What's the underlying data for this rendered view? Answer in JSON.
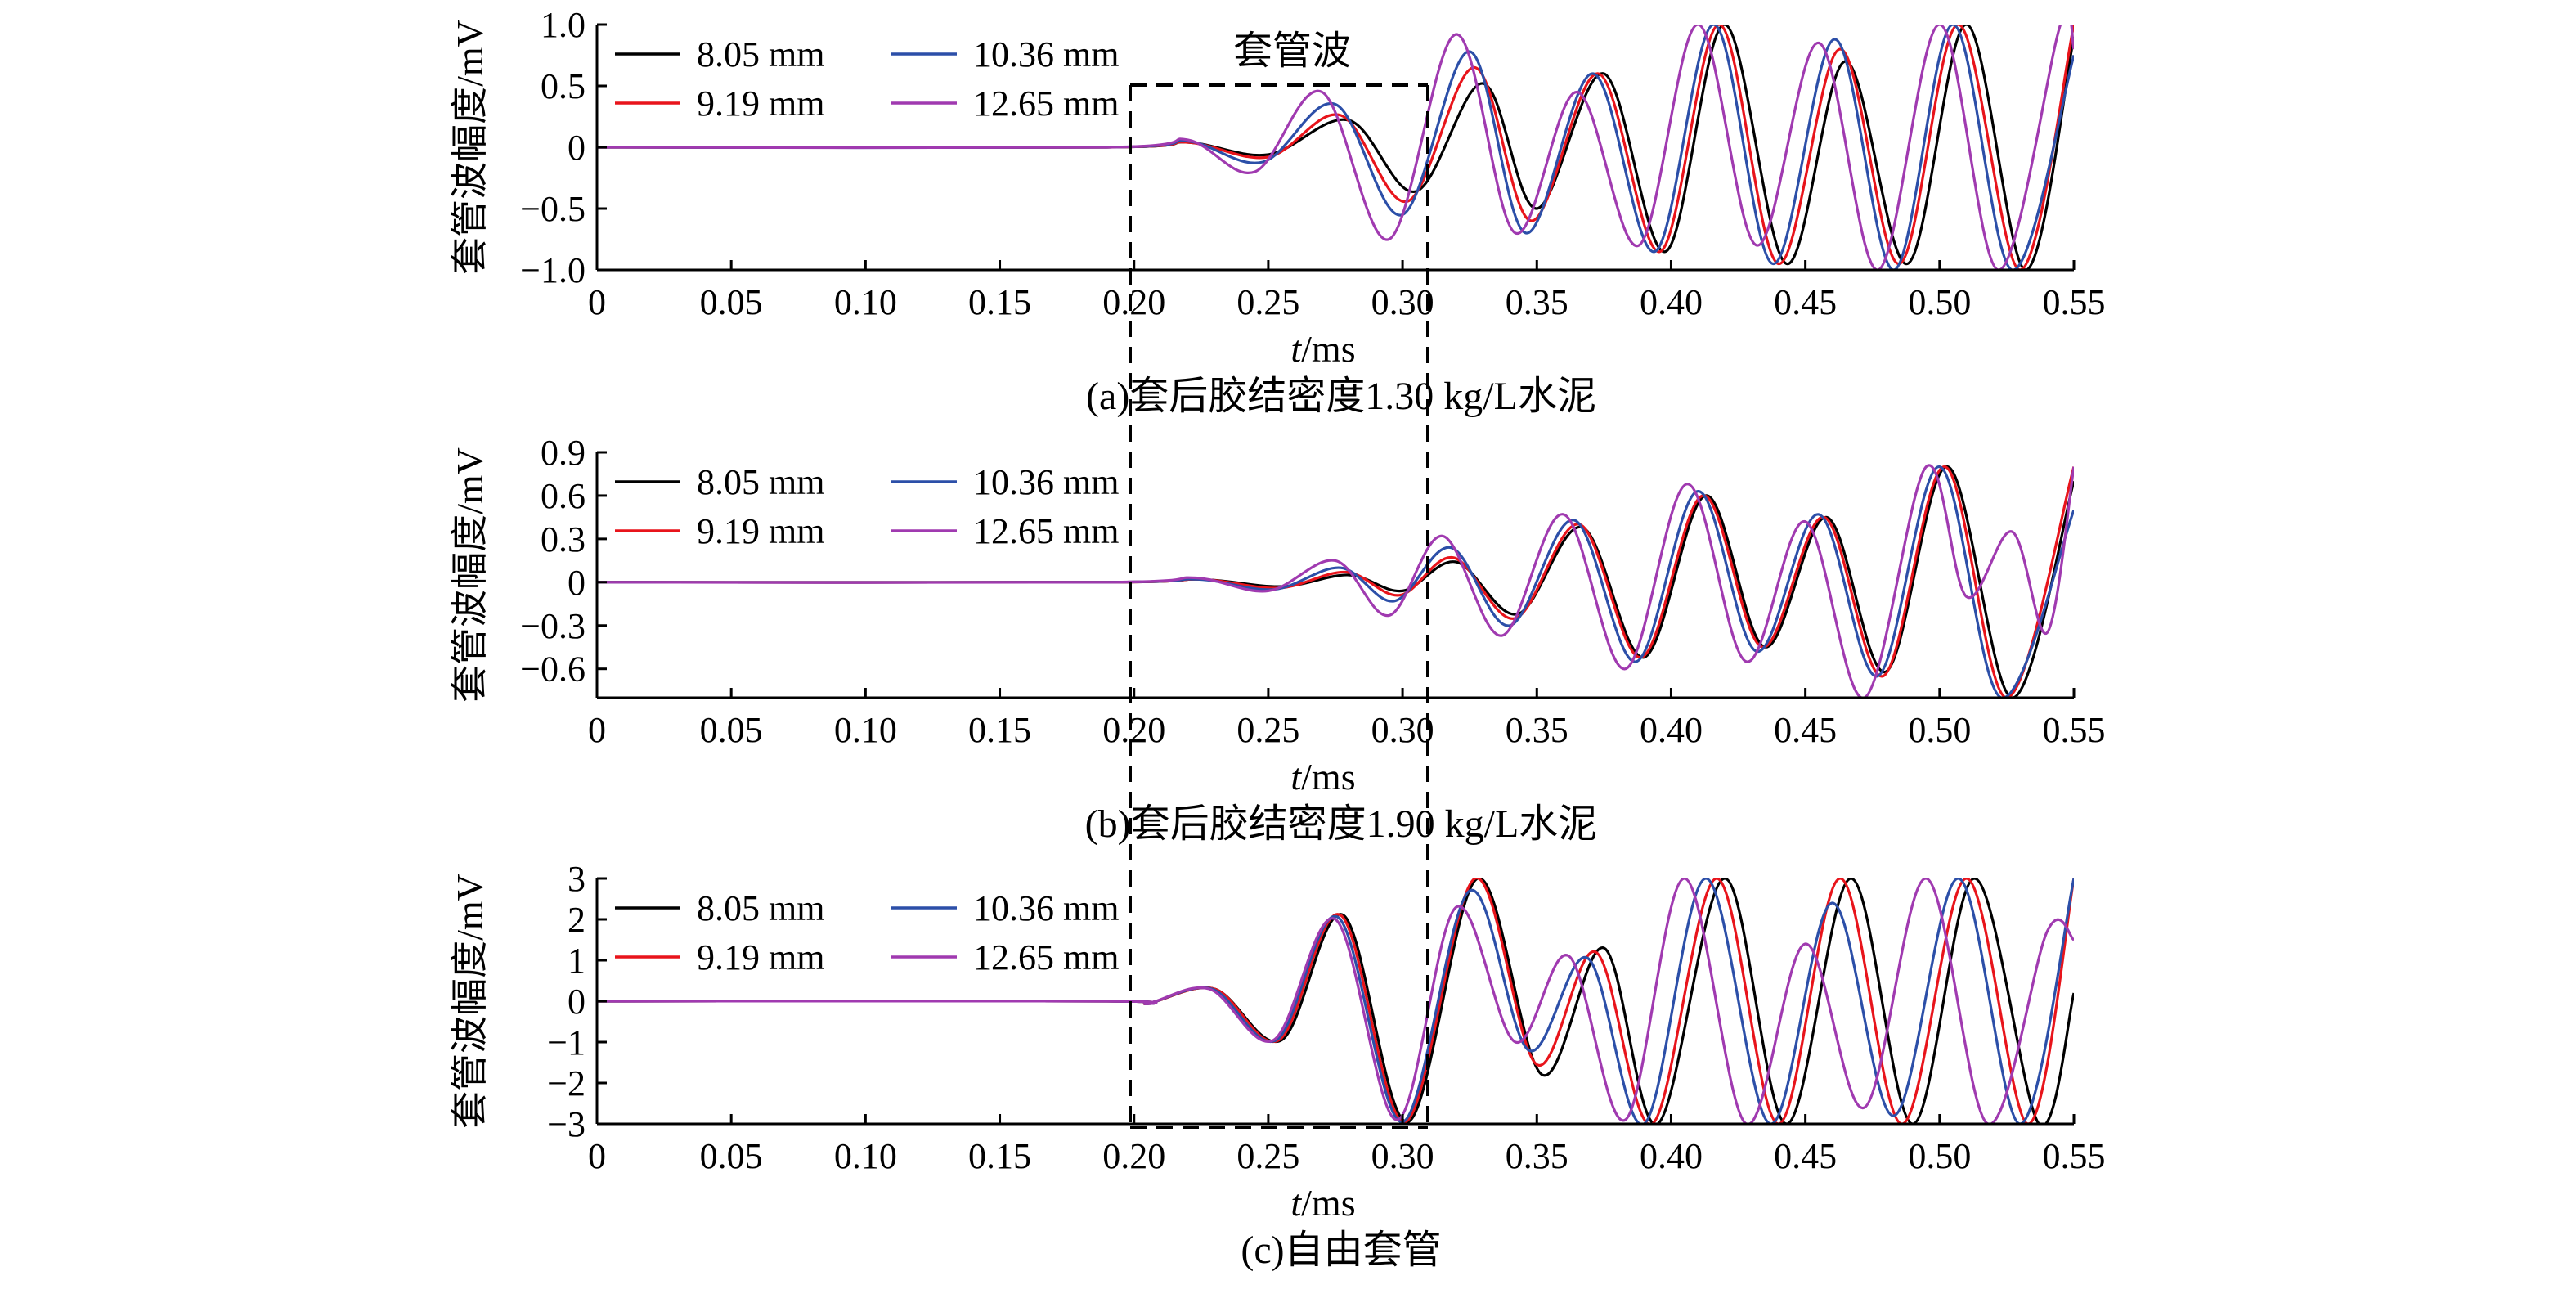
{
  "figure": {
    "annotation": "套管波",
    "legend_entries": [
      "8.05 mm",
      "9.19 mm",
      "10.36 mm",
      "12.65 mm"
    ],
    "colors": {
      "8.05 mm": "#000000",
      "9.19 mm": "#e8141b",
      "10.36 mm": "#2c4fa8",
      "12.65 mm": "#a03ab0"
    }
  },
  "chart_data": [
    {
      "type": "line",
      "caption": "(a)套后胶结密度1.30 kg/L水泥",
      "xlabel_italic": "t",
      "xlabel_rest": "/ms",
      "ylabel": "套管波幅度/mV",
      "xlim": [
        0,
        0.55
      ],
      "ylim": [
        -1.0,
        1.0
      ],
      "xticks": [
        "0",
        "0.05",
        "0.10",
        "0.15",
        "0.20",
        "0.25",
        "0.30",
        "0.35",
        "0.40",
        "0.45",
        "0.50",
        "0.55"
      ],
      "yticks": [
        "1.0",
        "0.5",
        "0",
        "−0.5",
        "−1.0"
      ],
      "ytick_values": [
        1.0,
        0.5,
        0,
        -0.5,
        -1.0
      ],
      "series": [
        {
          "name": "8.05 mm",
          "x": [
            0,
            0.19,
            0.22,
            0.25,
            0.28,
            0.305,
            0.33,
            0.35,
            0.375,
            0.398,
            0.42,
            0.443,
            0.465,
            0.488,
            0.51,
            0.532,
            0.55
          ],
          "y": [
            0,
            0,
            0.04,
            -0.06,
            0.22,
            -0.36,
            0.52,
            -0.5,
            0.6,
            -0.85,
            1.0,
            -0.95,
            0.7,
            -0.95,
            1.0,
            -1.0,
            0.9
          ]
        },
        {
          "name": "9.19 mm",
          "x": [
            0,
            0.19,
            0.22,
            0.25,
            0.277,
            0.302,
            0.327,
            0.348,
            0.373,
            0.396,
            0.418,
            0.44,
            0.463,
            0.485,
            0.507,
            0.53,
            0.55
          ],
          "y": [
            0,
            0,
            0.04,
            -0.08,
            0.26,
            -0.44,
            0.65,
            -0.6,
            0.6,
            -0.85,
            1.0,
            -0.95,
            0.8,
            -0.95,
            1.0,
            -1.0,
            1.0
          ]
        },
        {
          "name": "10.36 mm",
          "x": [
            0,
            0.19,
            0.22,
            0.248,
            0.275,
            0.3,
            0.325,
            0.346,
            0.371,
            0.394,
            0.416,
            0.438,
            0.461,
            0.483,
            0.505,
            0.527,
            0.55
          ],
          "y": [
            0,
            0,
            0.05,
            -0.12,
            0.35,
            -0.55,
            0.78,
            -0.7,
            0.6,
            -0.85,
            1.0,
            -0.95,
            0.88,
            -1.0,
            1.0,
            -1.0,
            0.75
          ]
        },
        {
          "name": "12.65 mm",
          "x": [
            0,
            0.19,
            0.22,
            0.245,
            0.27,
            0.295,
            0.32,
            0.342,
            0.365,
            0.388,
            0.41,
            0.432,
            0.455,
            0.477,
            0.5,
            0.522,
            0.545,
            0.55
          ],
          "y": [
            0,
            0,
            0.06,
            -0.2,
            0.45,
            -0.75,
            0.92,
            -0.7,
            0.45,
            -0.8,
            1.0,
            -0.8,
            0.85,
            -1.0,
            1.0,
            -1.0,
            1.0,
            0.8
          ]
        }
      ]
    },
    {
      "type": "line",
      "caption": "(b)套后胶结密度1.90 kg/L水泥",
      "xlabel_italic": "t",
      "xlabel_rest": "/ms",
      "ylabel": "套管波幅度/mV",
      "xlim": [
        0,
        0.55
      ],
      "ylim": [
        -0.8,
        0.9
      ],
      "xticks": [
        "0",
        "0.05",
        "0.10",
        "0.15",
        "0.20",
        "0.25",
        "0.30",
        "0.35",
        "0.40",
        "0.45",
        "0.50",
        "0.55"
      ],
      "yticks": [
        "0.9",
        "0.6",
        "0.3",
        "0",
        "−0.3",
        "−0.6"
      ],
      "ytick_values": [
        0.9,
        0.6,
        0.3,
        0,
        -0.3,
        -0.6
      ],
      "series": [
        {
          "name": "8.05 mm",
          "x": [
            0,
            0.19,
            0.225,
            0.255,
            0.28,
            0.3,
            0.32,
            0.343,
            0.367,
            0.39,
            0.413,
            0.435,
            0.458,
            0.48,
            0.503,
            0.527,
            0.55
          ],
          "y": [
            0,
            0,
            0.02,
            -0.03,
            0.05,
            -0.06,
            0.14,
            -0.22,
            0.38,
            -0.52,
            0.6,
            -0.45,
            0.45,
            -0.62,
            0.8,
            -0.8,
            0.7
          ]
        },
        {
          "name": "9.19 mm",
          "x": [
            0,
            0.19,
            0.225,
            0.254,
            0.279,
            0.299,
            0.319,
            0.342,
            0.366,
            0.389,
            0.412,
            0.434,
            0.457,
            0.479,
            0.502,
            0.525,
            0.55
          ],
          "y": [
            0,
            0,
            0.02,
            -0.04,
            0.07,
            -0.09,
            0.17,
            -0.25,
            0.4,
            -0.52,
            0.6,
            -0.45,
            0.45,
            -0.65,
            0.8,
            -0.8,
            0.8
          ]
        },
        {
          "name": "10.36 mm",
          "x": [
            0,
            0.19,
            0.224,
            0.252,
            0.277,
            0.297,
            0.318,
            0.34,
            0.364,
            0.387,
            0.41,
            0.432,
            0.455,
            0.477,
            0.5,
            0.523,
            0.55
          ],
          "y": [
            0,
            0,
            0.02,
            -0.05,
            0.1,
            -0.13,
            0.24,
            -0.3,
            0.43,
            -0.55,
            0.63,
            -0.48,
            0.47,
            -0.65,
            0.8,
            -0.8,
            0.5
          ]
        },
        {
          "name": "12.65 mm",
          "x": [
            0,
            0.19,
            0.223,
            0.25,
            0.275,
            0.295,
            0.315,
            0.337,
            0.36,
            0.383,
            0.406,
            0.428,
            0.45,
            0.472,
            0.495,
            0.51,
            0.527,
            0.54,
            0.55
          ],
          "y": [
            0,
            0,
            0.03,
            -0.06,
            0.15,
            -0.23,
            0.32,
            -0.37,
            0.47,
            -0.6,
            0.68,
            -0.55,
            0.42,
            -0.8,
            0.8,
            -0.1,
            0.35,
            -0.35,
            0.8
          ]
        }
      ]
    },
    {
      "type": "line",
      "caption": "(c)自由套管",
      "xlabel_italic": "t",
      "xlabel_rest": "/ms",
      "ylabel": "套管波幅度/mV",
      "xlim": [
        0,
        0.55
      ],
      "ylim": [
        -3,
        3
      ],
      "xticks": [
        "0",
        "0.05",
        "0.10",
        "0.15",
        "0.20",
        "0.25",
        "0.30",
        "0.35",
        "0.40",
        "0.45",
        "0.50",
        "0.55"
      ],
      "yticks": [
        "3",
        "2",
        "1",
        "0",
        "−1",
        "−2",
        "−3"
      ],
      "ytick_values": [
        3,
        2,
        1,
        0,
        -1,
        -2,
        -3
      ],
      "series": [
        {
          "name": "8.05 mm",
          "x": [
            0,
            0.19,
            0.205,
            0.23,
            0.255,
            0.278,
            0.302,
            0.328,
            0.352,
            0.375,
            0.395,
            0.42,
            0.443,
            0.467,
            0.49,
            0.513,
            0.537,
            0.55
          ],
          "y": [
            0,
            0,
            -0.05,
            0.3,
            -0.95,
            2.1,
            -2.95,
            3.0,
            -1.8,
            1.3,
            -3.0,
            3.0,
            -3.0,
            3.0,
            -3.0,
            3.0,
            -3.0,
            0.2
          ]
        },
        {
          "name": "9.19 mm",
          "x": [
            0,
            0.19,
            0.205,
            0.23,
            0.254,
            0.277,
            0.301,
            0.327,
            0.35,
            0.372,
            0.393,
            0.417,
            0.44,
            0.463,
            0.486,
            0.51,
            0.533,
            0.55
          ],
          "y": [
            0,
            0,
            -0.05,
            0.3,
            -0.95,
            2.1,
            -2.95,
            3.0,
            -1.55,
            1.2,
            -3.0,
            3.0,
            -3.0,
            3.0,
            -3.0,
            3.0,
            -3.0,
            3.0
          ]
        },
        {
          "name": "10.36 mm",
          "x": [
            0,
            0.19,
            0.205,
            0.229,
            0.253,
            0.276,
            0.3,
            0.325,
            0.347,
            0.369,
            0.39,
            0.413,
            0.437,
            0.46,
            0.483,
            0.507,
            0.53,
            0.55
          ],
          "y": [
            0,
            0,
            -0.05,
            0.3,
            -0.95,
            2.05,
            -2.95,
            2.7,
            -1.2,
            1.05,
            -3.0,
            3.0,
            -3.0,
            2.4,
            -2.8,
            3.0,
            -3.0,
            3.0
          ]
        },
        {
          "name": "12.65 mm",
          "x": [
            0,
            0.19,
            0.205,
            0.228,
            0.252,
            0.275,
            0.298,
            0.32,
            0.342,
            0.362,
            0.383,
            0.405,
            0.428,
            0.45,
            0.472,
            0.495,
            0.518,
            0.54,
            0.55
          ],
          "y": [
            0,
            0,
            -0.05,
            0.3,
            -0.95,
            2.0,
            -2.9,
            2.3,
            -1.0,
            1.1,
            -2.9,
            3.0,
            -3.0,
            1.4,
            -2.6,
            3.0,
            -3.0,
            1.7,
            1.5
          ]
        }
      ]
    }
  ]
}
